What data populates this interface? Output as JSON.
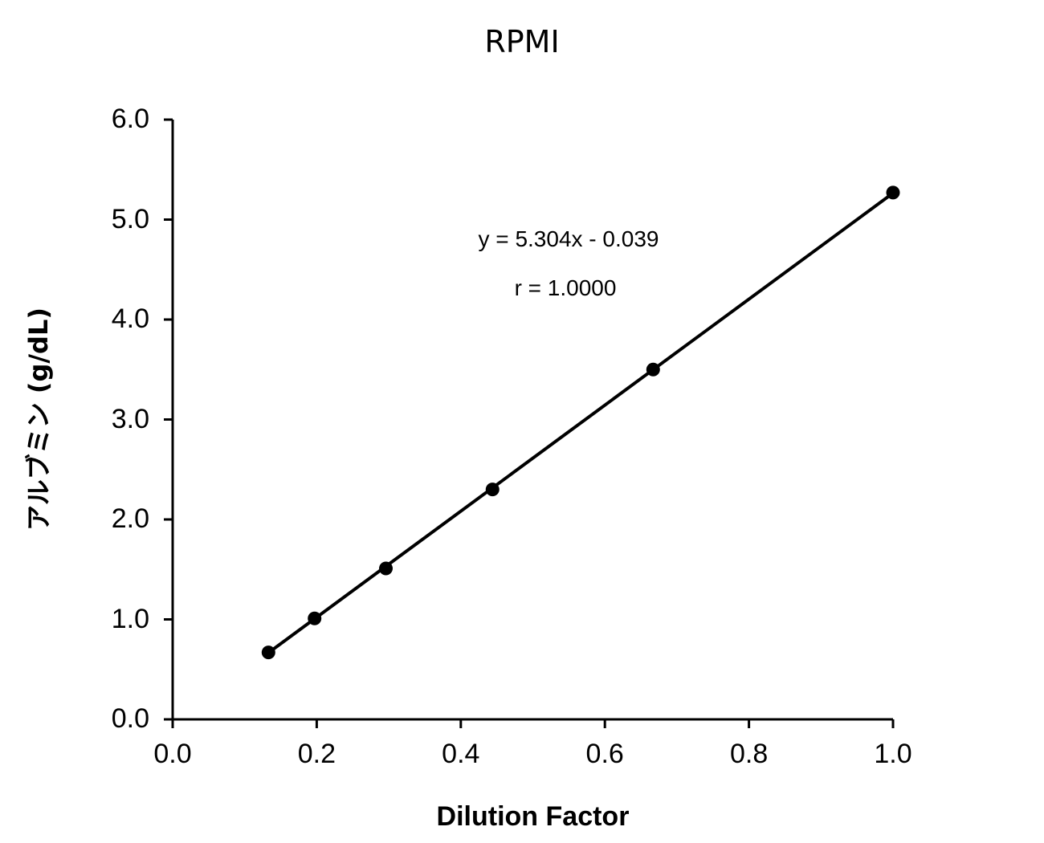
{
  "chart_data": {
    "type": "scatter",
    "title": "RPMI",
    "xlabel": "Dilution Factor",
    "ylabel": "アルブミン (g/dL)",
    "xlim": [
      0.0,
      1.0
    ],
    "ylim": [
      0.0,
      6.0
    ],
    "x_ticks": [
      "0.0",
      "0.2",
      "0.4",
      "0.6",
      "0.8",
      "1.0"
    ],
    "y_ticks": [
      "0.0",
      "1.0",
      "2.0",
      "3.0",
      "4.0",
      "5.0",
      "6.0"
    ],
    "grid": false,
    "legend": null,
    "series": [
      {
        "name": "RPMI",
        "marker": "circle",
        "color": "#000000",
        "x": [
          0.133,
          0.197,
          0.296,
          0.444,
          0.667,
          1.0
        ],
        "y": [
          0.67,
          1.01,
          1.51,
          2.3,
          3.5,
          5.27
        ]
      }
    ],
    "trendline": {
      "type": "linear",
      "slope": 5.304,
      "intercept": -0.039,
      "color": "#000000"
    },
    "annotations": [
      {
        "id": "equation",
        "text": "y = 5.304x - 0.039"
      },
      {
        "id": "correlation",
        "text": "r = 1.0000"
      }
    ]
  }
}
